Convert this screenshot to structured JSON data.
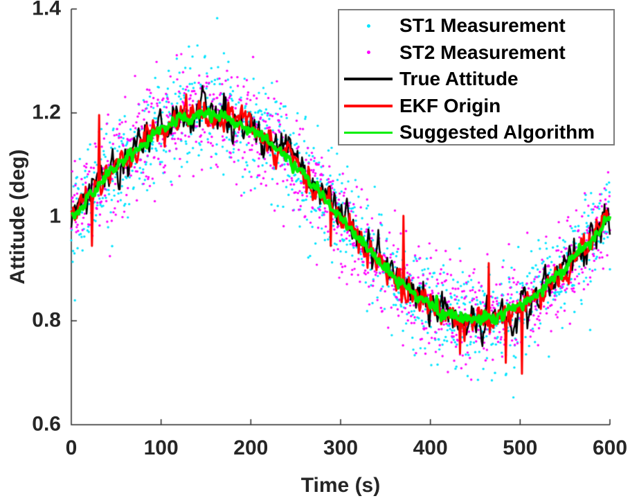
{
  "chart_data": {
    "type": "line+scatter",
    "title": "",
    "xlabel": "Time (s)",
    "ylabel": "Attitude (deg)",
    "xlim": [
      0,
      600
    ],
    "ylim": [
      0.6,
      1.4
    ],
    "xticks": {
      "values": [
        0,
        100,
        200,
        300,
        400,
        500,
        600
      ],
      "labels": [
        "0",
        "100",
        "200",
        "300",
        "400",
        "500",
        "600"
      ]
    },
    "yticks": {
      "values": [
        0.6,
        0.8,
        1.0,
        1.2,
        1.4
      ],
      "labels": [
        "0.6",
        "0.8",
        "1",
        "1.2",
        "1.4"
      ]
    },
    "grid": false,
    "box": false,
    "tick_direction": "in",
    "axis_color": "#262626",
    "tick_label_color": "#262626",
    "background": "#ffffff",
    "legend": {
      "position": "top-right",
      "border_color": "#7b7b7b",
      "background": "#ffffff",
      "text_color": "#000000"
    },
    "model_note": "All series follow attitude = mean + amplitude*sin(2*pi*t/period) with additive noise; EKF Origin has transient spike outliers listed as [t_seconds, attitude_deg].",
    "series": [
      {
        "name": "ST1 Measurement",
        "type": "scatter",
        "color": "#00e5ff",
        "marker": "dot",
        "marker_size": 3,
        "dt": 0.5,
        "mean": 1.0,
        "amplitude": 0.2,
        "period": 600,
        "noise_std": 0.05
      },
      {
        "name": "ST2 Measurement",
        "type": "scatter",
        "color": "#ff00ff",
        "marker": "dot",
        "marker_size": 3,
        "dt": 0.5,
        "mean": 1.0,
        "amplitude": 0.2,
        "period": 600,
        "noise_std": 0.05
      },
      {
        "name": "True Attitude",
        "type": "line",
        "color": "#000000",
        "line_width": 2.5,
        "dt": 1,
        "mean": 1.0,
        "amplitude": 0.2,
        "period": 600,
        "noise_std": 0.016,
        "noise_ar": 0.55
      },
      {
        "name": "EKF Origin",
        "type": "line",
        "color": "#ff0000",
        "line_width": 3,
        "dt": 1,
        "mean": 1.0,
        "amplitude": 0.2,
        "period": 600,
        "noise_std": 0.012,
        "noise_ar": 0.5,
        "spikes": [
          [
            23,
            0.944
          ],
          [
            31,
            1.196
          ],
          [
            289,
            0.944
          ],
          [
            370,
            1.002
          ],
          [
            433,
            0.737
          ],
          [
            465,
            0.911
          ],
          [
            484,
            0.719
          ],
          [
            502,
            0.698
          ],
          [
            571,
            0.967
          ]
        ]
      },
      {
        "name": "Suggested Algorithm",
        "type": "line",
        "color": "#00ee00",
        "line_width": 4.5,
        "dt": 1,
        "mean": 1.0,
        "amplitude": 0.195,
        "period": 600,
        "noise_std": 0.006,
        "noise_ar": 0.3
      }
    ]
  }
}
